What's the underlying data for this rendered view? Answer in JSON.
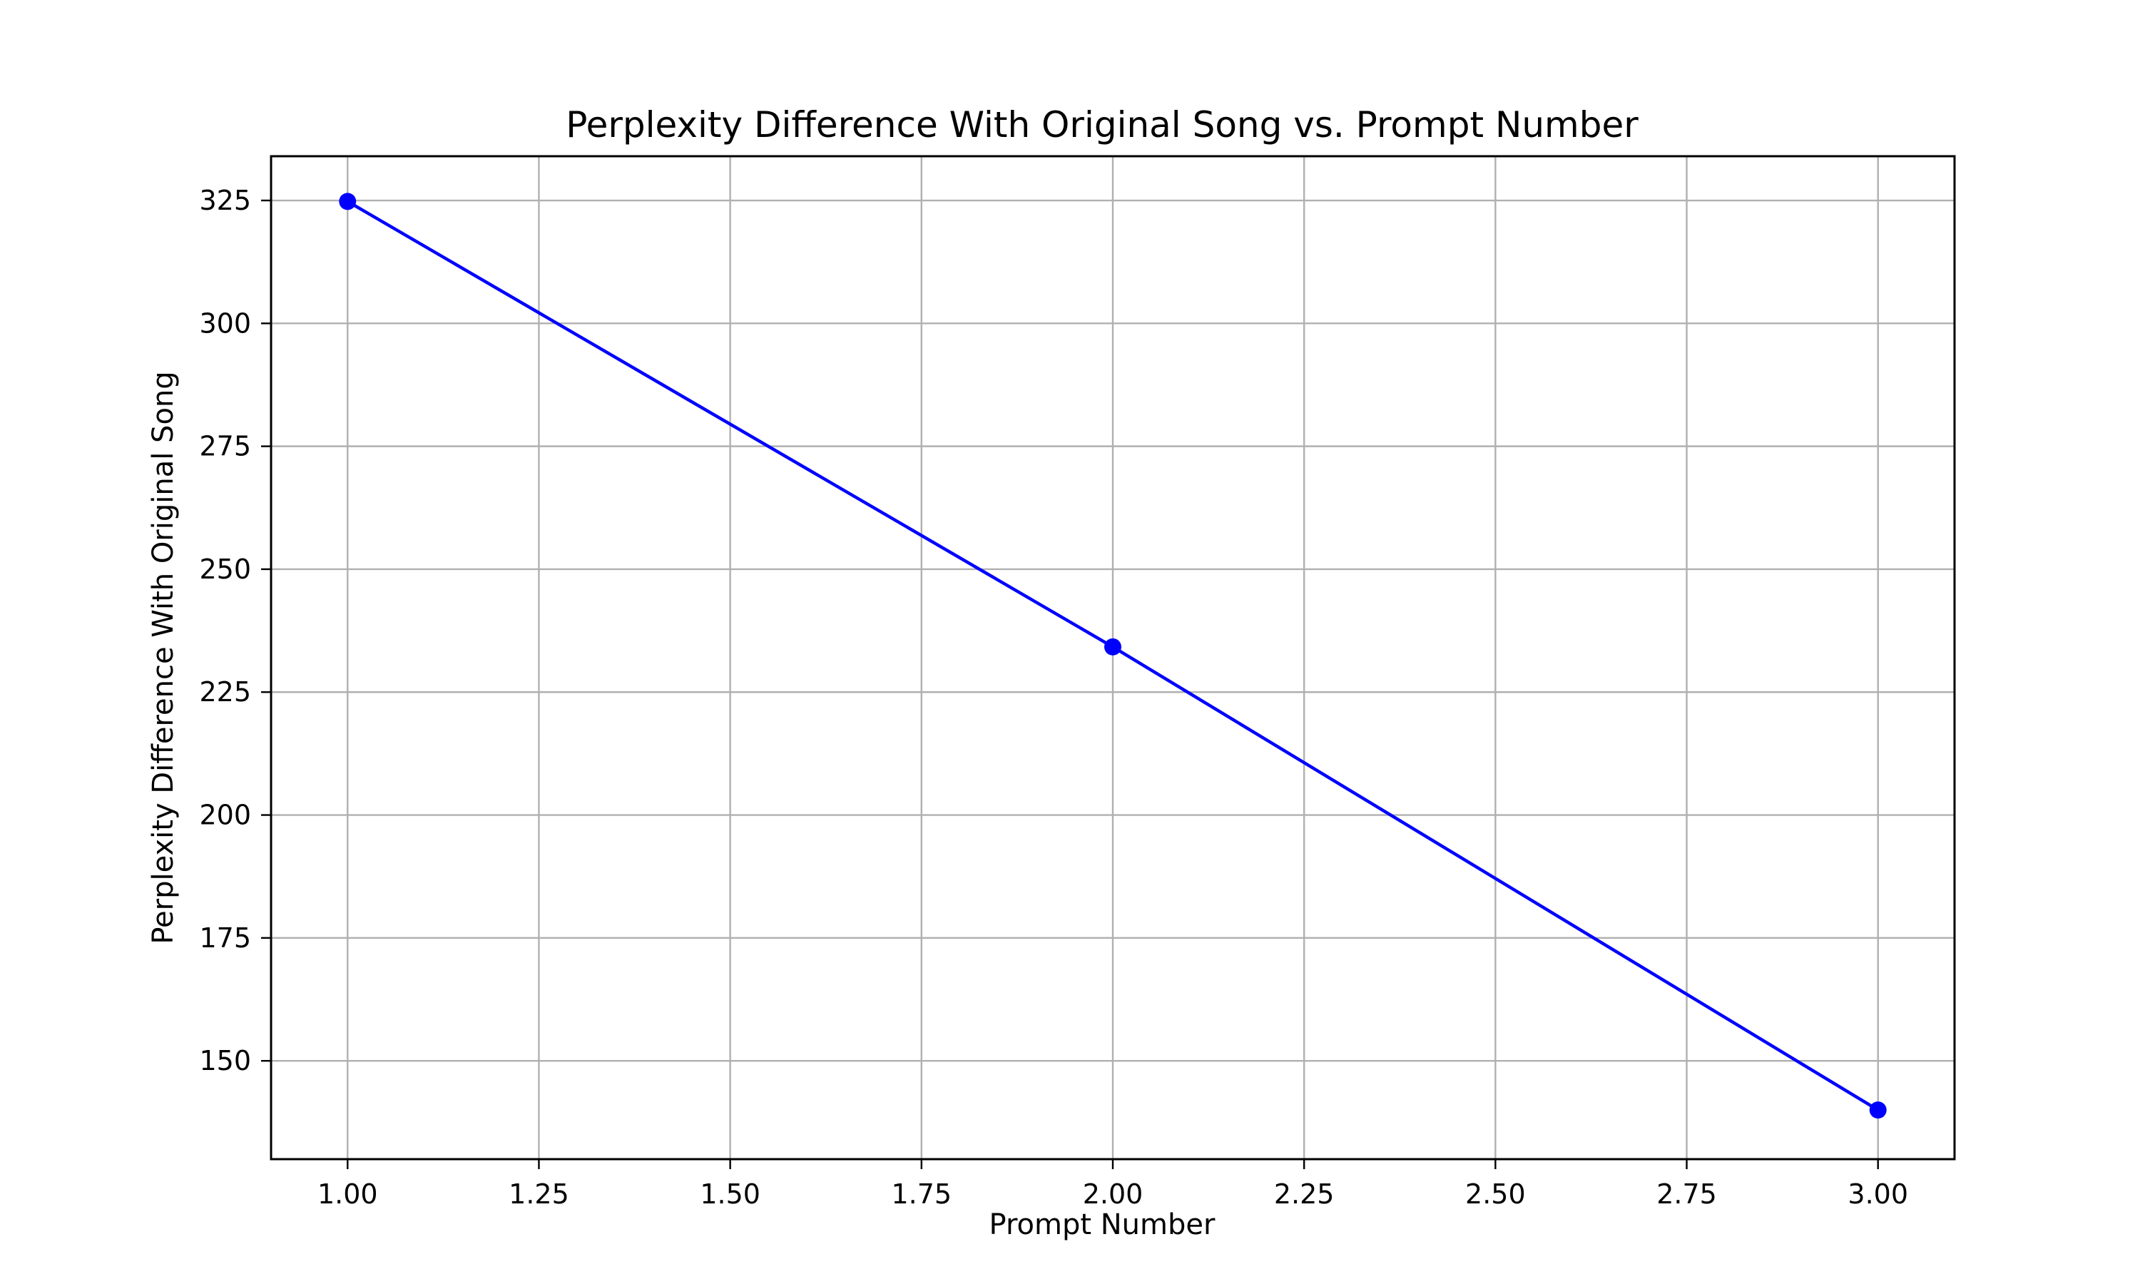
{
  "chart_data": {
    "type": "line",
    "title": "Perplexity Difference With Original Song vs. Prompt Number",
    "xlabel": "Prompt Number",
    "ylabel": "Perplexity Difference With Original Song",
    "xlim": [
      0.9,
      3.1
    ],
    "ylim": [
      130,
      334
    ],
    "x_ticks": [
      1.0,
      1.25,
      1.5,
      1.75,
      2.0,
      2.25,
      2.5,
      2.75,
      3.0
    ],
    "x_tick_labels": [
      "1.00",
      "1.25",
      "1.50",
      "1.75",
      "2.00",
      "2.25",
      "2.50",
      "2.75",
      "3.00"
    ],
    "y_ticks": [
      150,
      175,
      200,
      225,
      250,
      275,
      300,
      325
    ],
    "y_tick_labels": [
      "150",
      "175",
      "200",
      "225",
      "250",
      "275",
      "300",
      "325"
    ],
    "grid": true,
    "legend": "none",
    "series": [
      {
        "color": "#0000ff",
        "marker": "circle",
        "points": [
          {
            "x": 1,
            "y": 324.8
          },
          {
            "x": 2,
            "y": 234.2
          },
          {
            "x": 3,
            "y": 140.0
          }
        ]
      }
    ]
  }
}
